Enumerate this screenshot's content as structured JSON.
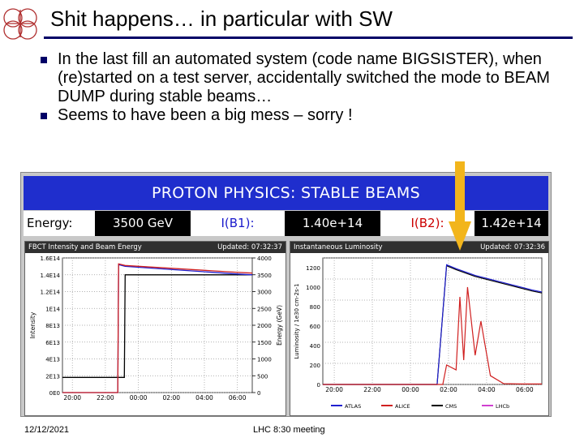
{
  "slide": {
    "title": "Shit happens… in particular with SW",
    "bullets": [
      "In the last fill an automated system (code name BIGSISTER), when (re)started on a test server, accidentally switched the mode to BEAM DUMP during stable beams…",
      "Seems to have been a big mess – sorry !"
    ]
  },
  "lhc_page": {
    "banner": "PROTON PHYSICS: STABLE BEAMS",
    "energy_label": "Energy:",
    "energy_value": "3500 GeV",
    "b1_label": "I(B1):",
    "b1_value": "1.40e+14",
    "b2_label": "I(B2):",
    "b2_value": "1.42e+14"
  },
  "chart_data": [
    {
      "type": "line",
      "title": "FBCT Intensity and Beam Energy",
      "updated": "Updated: 07:32:37",
      "ylabel": "Intensity",
      "ylabel_right": "Energy (GeV)",
      "x_ticks": [
        "20:00",
        "22:00",
        "00:00",
        "02:00",
        "04:00",
        "06:00"
      ],
      "y_ticks": [
        "0E0",
        "2E13",
        "4E13",
        "6E13",
        "8E13",
        "1E14",
        "1.2E14",
        "1.4E14",
        "1.6E14"
      ],
      "y_right_ticks": [
        "0",
        "500",
        "1000",
        "1500",
        "2000",
        "2500",
        "3000",
        "3500",
        "4000"
      ],
      "ylim": [
        0,
        160000000000000.0
      ],
      "y_right_lim": [
        0,
        4000
      ],
      "series": [
        {
          "color": "#000000",
          "axis": "right",
          "x": [
            0,
            1.6,
            2.2,
            3.0,
            3.75,
            3.8,
            4.5,
            10.5,
            11.5
          ],
          "y": [
            450,
            450,
            450,
            450,
            450,
            3500,
            3500,
            3500,
            3500
          ]
        },
        {
          "color": "#2020d0",
          "axis": "left",
          "x": [
            0,
            3.0,
            3.35,
            3.4,
            3.8,
            10.5,
            11.5
          ],
          "y": [
            0,
            0,
            0,
            152000000000000.0,
            150000000000000.0,
            141000000000000.0,
            140000000000000.0
          ]
        },
        {
          "color": "#d02020",
          "axis": "left",
          "x": [
            0,
            3.0,
            3.35,
            3.4,
            3.8,
            10.5,
            11.5
          ],
          "y": [
            0,
            0,
            0,
            153000000000000.0,
            151000000000000.0,
            143000000000000.0,
            142000000000000.0
          ]
        }
      ]
    },
    {
      "type": "line",
      "title": "Instantaneous Luminosity",
      "updated": "Updated: 07:32:36",
      "ylabel": "Luminosity / 1e30 cm-2s-1",
      "x_ticks": [
        "20:00",
        "22:00",
        "00:00",
        "02:00",
        "04:00",
        "06:00"
      ],
      "y_ticks": [
        "0",
        "200",
        "400",
        "600",
        "800",
        "1000",
        "1200"
      ],
      "ylim": [
        0,
        1300
      ],
      "legend": [
        "ATLAS",
        "ALICE",
        "CMS",
        "LHCb"
      ],
      "legend_colors": [
        "#2020d0",
        "#d02020",
        "#000000",
        "#d040d0"
      ],
      "series": [
        {
          "color": "#000000",
          "x": [
            0,
            6.0,
            6.5,
            7.0,
            8.0,
            9.0,
            10.0,
            11.0,
            11.5
          ],
          "y": [
            0,
            0,
            1220,
            1180,
            1110,
            1060,
            1010,
            960,
            940
          ]
        },
        {
          "color": "#2020d0",
          "x": [
            0,
            6.0,
            6.5,
            7.0,
            8.0,
            9.0,
            10.0,
            11.0,
            11.5
          ],
          "y": [
            0,
            0,
            1230,
            1190,
            1120,
            1070,
            1020,
            970,
            950
          ]
        },
        {
          "color": "#d02020",
          "x": [
            0,
            6.3,
            6.5,
            7.0,
            7.2,
            7.4,
            7.6,
            8.0,
            8.3,
            8.8,
            9.5,
            10.5,
            11.5
          ],
          "y": [
            0,
            0,
            200,
            150,
            900,
            250,
            1000,
            300,
            650,
            90,
            8,
            5,
            5
          ]
        }
      ]
    }
  ],
  "footer": {
    "date": "12/12/2021",
    "center": "LHC 8:30 meeting"
  }
}
